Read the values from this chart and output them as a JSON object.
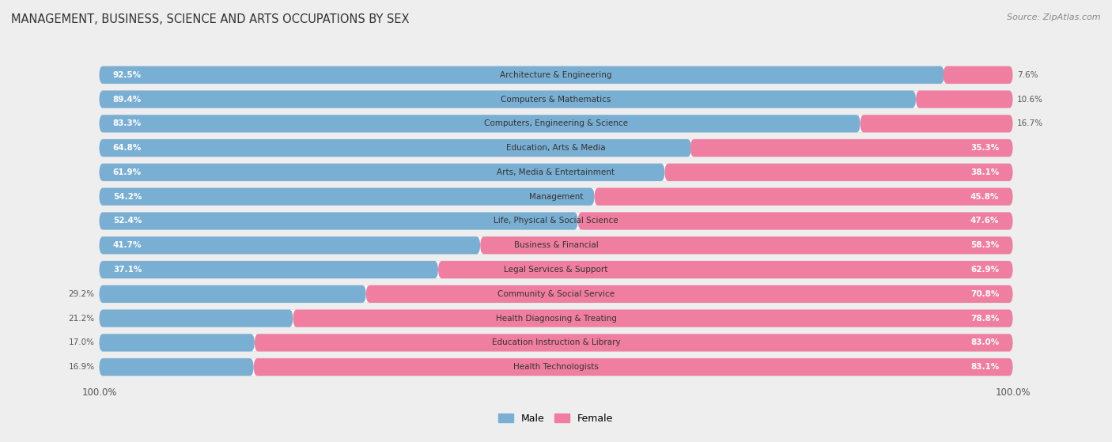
{
  "title": "MANAGEMENT, BUSINESS, SCIENCE AND ARTS OCCUPATIONS BY SEX",
  "source": "Source: ZipAtlas.com",
  "categories": [
    "Architecture & Engineering",
    "Computers & Mathematics",
    "Computers, Engineering & Science",
    "Education, Arts & Media",
    "Arts, Media & Entertainment",
    "Management",
    "Life, Physical & Social Science",
    "Business & Financial",
    "Legal Services & Support",
    "Community & Social Service",
    "Health Diagnosing & Treating",
    "Education Instruction & Library",
    "Health Technologists"
  ],
  "male_pct": [
    92.5,
    89.4,
    83.3,
    64.8,
    61.9,
    54.2,
    52.4,
    41.7,
    37.1,
    29.2,
    21.2,
    17.0,
    16.9
  ],
  "female_pct": [
    7.6,
    10.6,
    16.7,
    35.3,
    38.1,
    45.8,
    47.6,
    58.3,
    62.9,
    70.8,
    78.8,
    83.0,
    83.1
  ],
  "male_color": "#7aafd4",
  "female_color": "#f07ea0",
  "bg_color": "#eeeeee",
  "bar_bg_color": "#ffffff",
  "threshold_inside": 30
}
